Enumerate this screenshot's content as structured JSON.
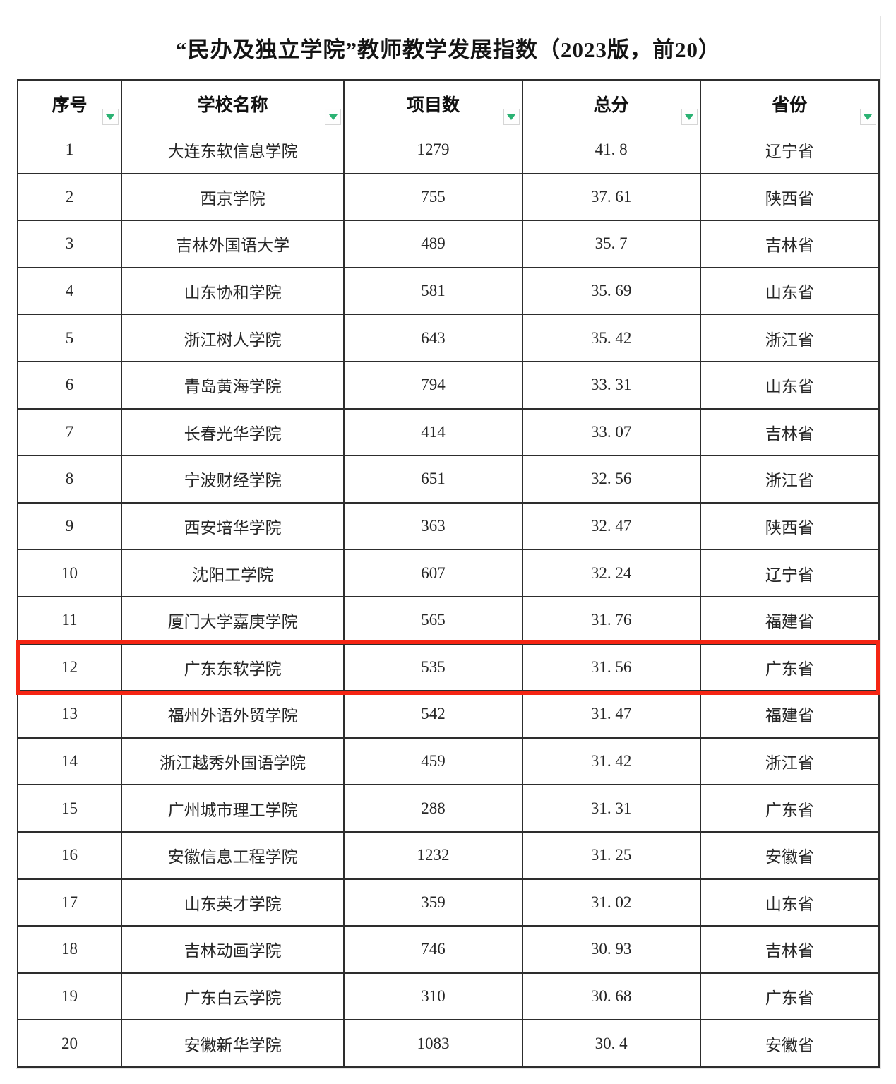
{
  "title": "“民办及独立学院”教师教学发展指数（2023版，前20）",
  "table": {
    "columns": [
      {
        "key": "rank",
        "label": "序号"
      },
      {
        "key": "school",
        "label": "学校名称"
      },
      {
        "key": "projects",
        "label": "项目数"
      },
      {
        "key": "score",
        "label": "总分"
      },
      {
        "key": "province",
        "label": "省份"
      }
    ],
    "highlighted_rank": "12",
    "rows": [
      {
        "rank": "1",
        "school": "大连东软信息学院",
        "projects": "1279",
        "score": "41. 8",
        "province": "辽宁省"
      },
      {
        "rank": "2",
        "school": "西京学院",
        "projects": "755",
        "score": "37. 61",
        "province": "陕西省"
      },
      {
        "rank": "3",
        "school": "吉林外国语大学",
        "projects": "489",
        "score": "35. 7",
        "province": "吉林省"
      },
      {
        "rank": "4",
        "school": "山东协和学院",
        "projects": "581",
        "score": "35. 69",
        "province": "山东省"
      },
      {
        "rank": "5",
        "school": "浙江树人学院",
        "projects": "643",
        "score": "35. 42",
        "province": "浙江省"
      },
      {
        "rank": "6",
        "school": "青岛黄海学院",
        "projects": "794",
        "score": "33. 31",
        "province": "山东省"
      },
      {
        "rank": "7",
        "school": "长春光华学院",
        "projects": "414",
        "score": "33. 07",
        "province": "吉林省"
      },
      {
        "rank": "8",
        "school": "宁波财经学院",
        "projects": "651",
        "score": "32. 56",
        "province": "浙江省"
      },
      {
        "rank": "9",
        "school": "西安培华学院",
        "projects": "363",
        "score": "32. 47",
        "province": "陕西省"
      },
      {
        "rank": "10",
        "school": "沈阳工学院",
        "projects": "607",
        "score": "32. 24",
        "province": "辽宁省"
      },
      {
        "rank": "11",
        "school": "厦门大学嘉庚学院",
        "projects": "565",
        "score": "31. 76",
        "province": "福建省"
      },
      {
        "rank": "12",
        "school": "广东东软学院",
        "projects": "535",
        "score": "31. 56",
        "province": "广东省"
      },
      {
        "rank": "13",
        "school": "福州外语外贸学院",
        "projects": "542",
        "score": "31. 47",
        "province": "福建省"
      },
      {
        "rank": "14",
        "school": "浙江越秀外国语学院",
        "projects": "459",
        "score": "31. 42",
        "province": "浙江省"
      },
      {
        "rank": "15",
        "school": "广州城市理工学院",
        "projects": "288",
        "score": "31. 31",
        "province": "广东省"
      },
      {
        "rank": "16",
        "school": "安徽信息工程学院",
        "projects": "1232",
        "score": "31. 25",
        "province": "安徽省"
      },
      {
        "rank": "17",
        "school": "山东英才学院",
        "projects": "359",
        "score": "31. 02",
        "province": "山东省"
      },
      {
        "rank": "18",
        "school": "吉林动画学院",
        "projects": "746",
        "score": "30. 93",
        "province": "吉林省"
      },
      {
        "rank": "19",
        "school": "广东白云学院",
        "projects": "310",
        "score": "30. 68",
        "province": "广东省"
      },
      {
        "rank": "20",
        "school": "安徽新华学院",
        "projects": "1083",
        "score": "30. 4",
        "province": "安徽省"
      }
    ]
  },
  "colors": {
    "highlight_red": "#f52513",
    "filter_green": "#2bb273",
    "grid_dark": "#2d2d2d"
  }
}
